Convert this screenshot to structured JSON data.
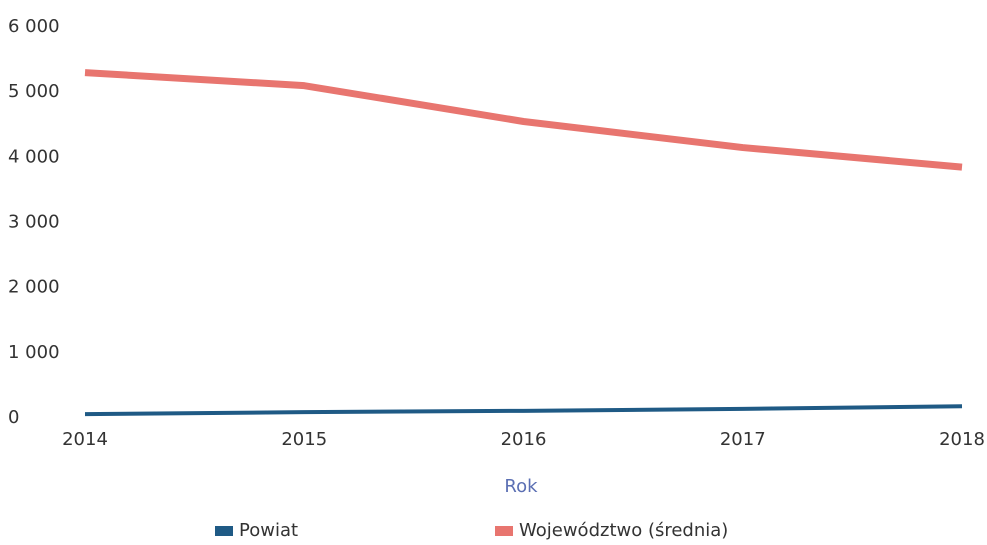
{
  "chart_data": {
    "type": "line",
    "xlabel": "Rok",
    "categories": [
      "2014",
      "2015",
      "2016",
      "2017",
      "2018"
    ],
    "series": [
      {
        "name": "Powiat",
        "color": "#1f5a85",
        "values": [
          60,
          90,
          110,
          140,
          180
        ]
      },
      {
        "name": "Województwo (średnia)",
        "color": "#e8756f",
        "values": [
          5300,
          5100,
          4550,
          4150,
          3850
        ]
      }
    ],
    "ylim": [
      0,
      6000
    ],
    "yticks": [
      0,
      {
        "value": 1000,
        "label": "1 000"
      },
      {
        "value": 2000,
        "label": "2 000"
      },
      {
        "value": 3000,
        "label": "3 000"
      },
      {
        "value": 4000,
        "label": "4 000"
      },
      {
        "value": 5000,
        "label": "5 000"
      },
      {
        "value": 6000,
        "label": "6 000"
      }
    ],
    "legend": "bottom"
  }
}
